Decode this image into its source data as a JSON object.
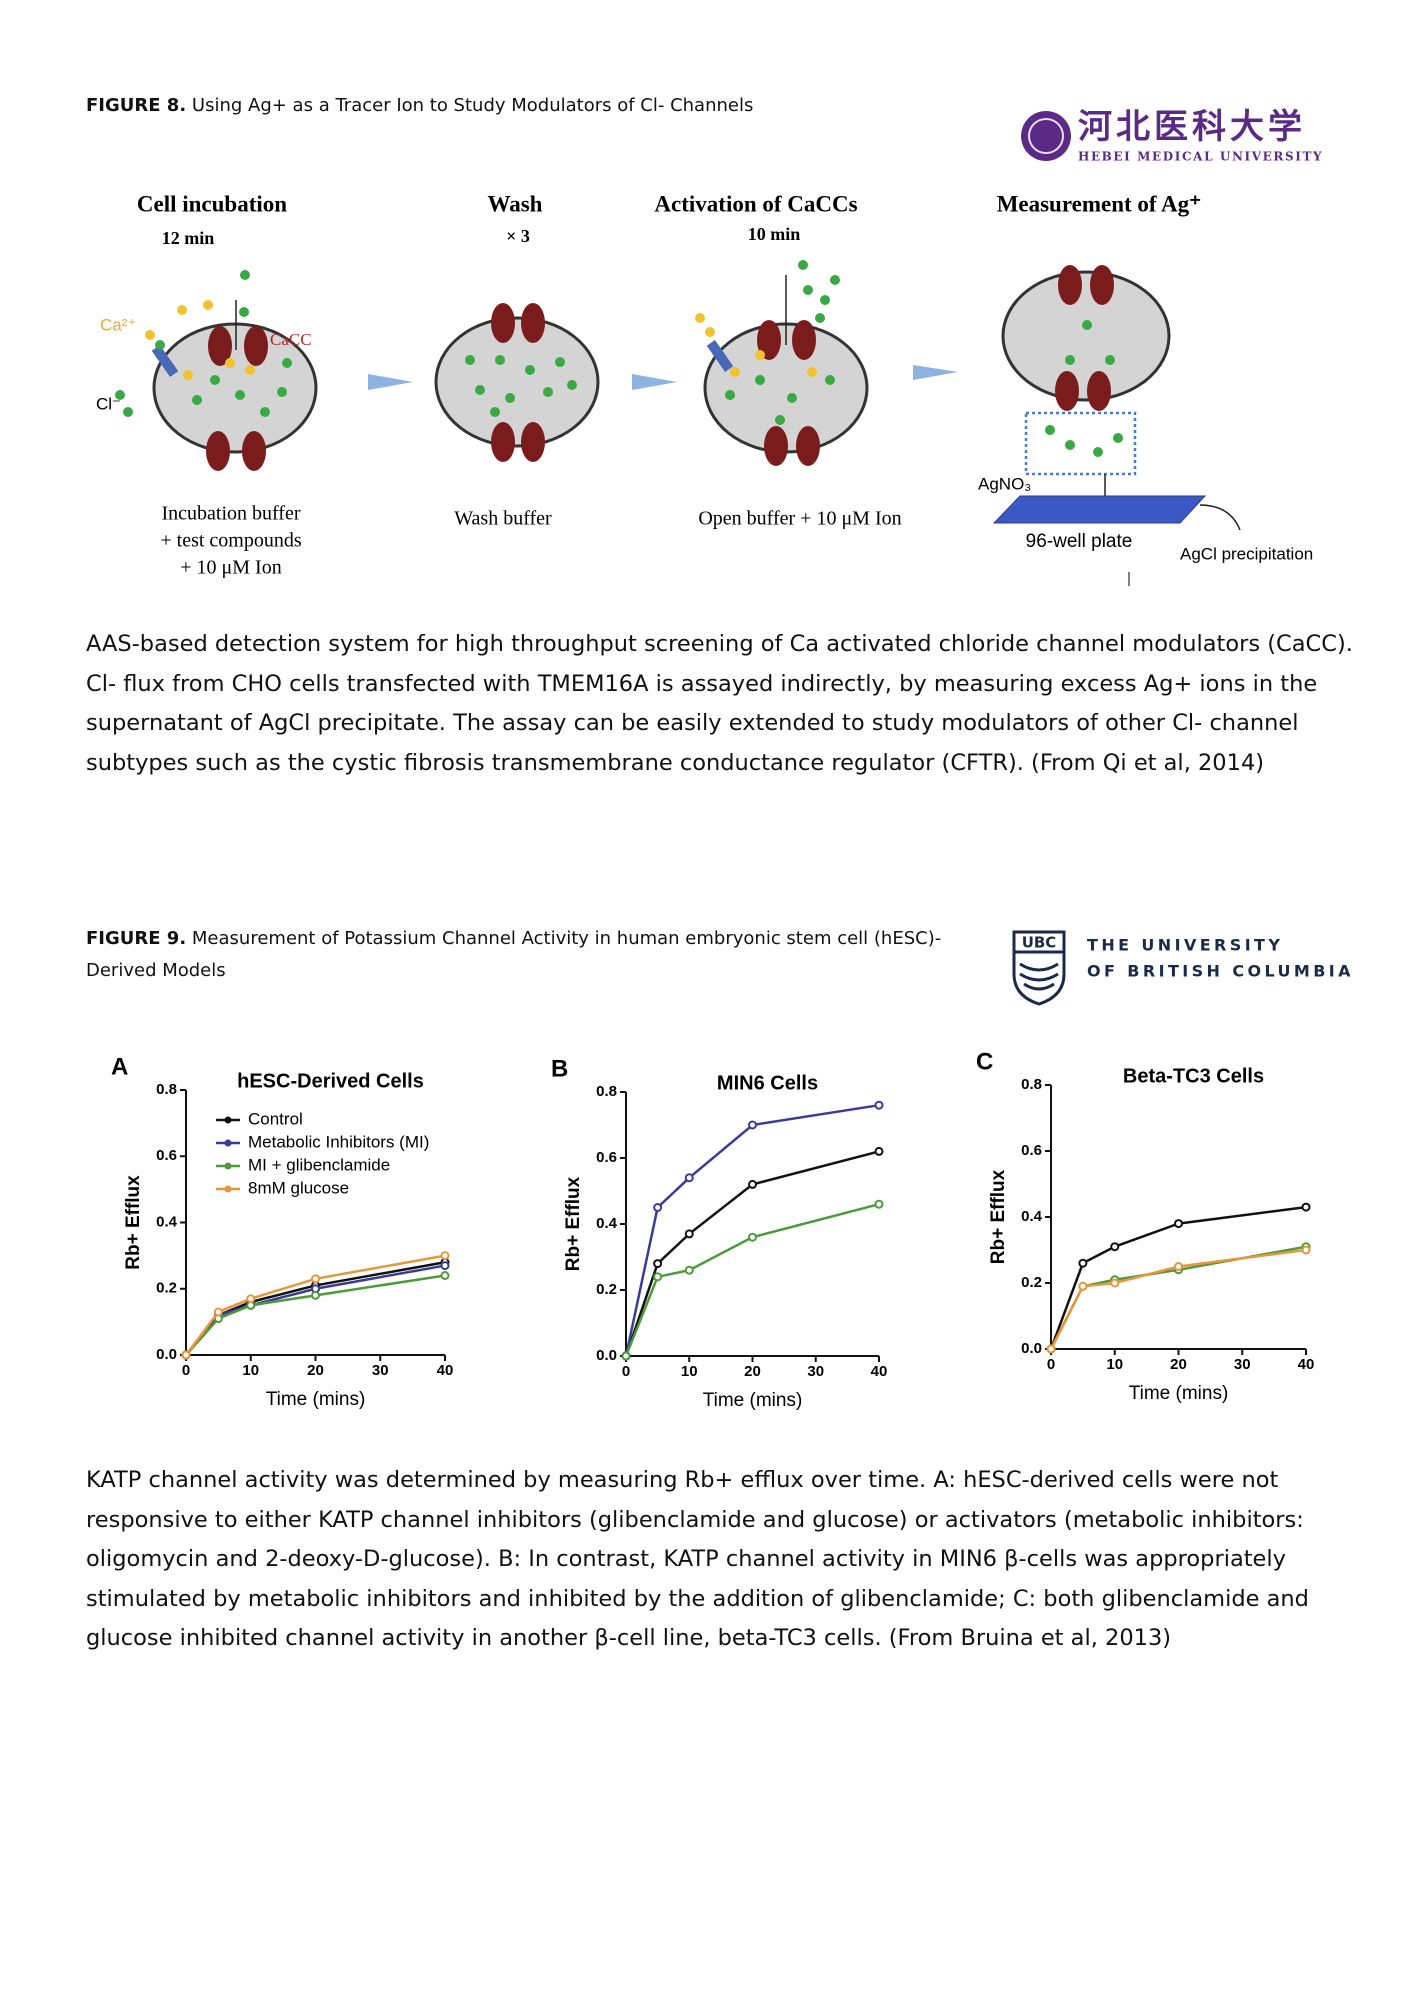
{
  "figure8": {
    "caption_label": "FIGURE 8.",
    "caption": "Using Ag+ as a Tracer Ion to Study Modulators of Cl- Channels",
    "logo": {
      "chinese": "河北医科大学",
      "english": "HEBEI MEDICAL UNIVERSITY"
    },
    "diagram": {
      "steps": [
        {
          "title": "Cell incubation",
          "time": "12 min",
          "buffer": [
            "Incubation buffer",
            "+ test compounds",
            "+ 10 μM Ion"
          ]
        },
        {
          "title": "Wash",
          "time": "× 3",
          "buffer": [
            "Wash buffer"
          ]
        },
        {
          "title": "Activation of CaCCs",
          "time": "10 min",
          "buffer": [
            "Open buffer + 10 μM Ion"
          ]
        },
        {
          "title": "Measurement of Ag⁺"
        }
      ],
      "labels": {
        "ca": "Ca²⁺",
        "cacc": "CaCC",
        "cl": "Cl⁻",
        "agno3": "AgNO₃",
        "plate": "96-well plate",
        "precipitation": "AgCl precipitation"
      }
    },
    "description": "AAS-based detection system for high throughput screening of Ca activated chloride channel modulators (CaCC). Cl- flux from CHO cells transfected with TMEM16A is assayed indirectly, by measuring excess Ag+ ions in the supernatant of AgCl precipitate. The assay can be easily extended to study modulators of other Cl- channel subtypes such as the cystic fibrosis transmembrane conductance regulator (CFTR). (From Qi et al, 2014)"
  },
  "figure9": {
    "caption_label": "FIGURE 9.",
    "caption": "Measurement of Potassium Channel Activity in human embryonic stem cell (hESC)- Derived Models",
    "logo": {
      "mark": "UBC",
      "line1": "THE UNIVERSITY",
      "line2": "OF BRITISH COLUMBIA"
    },
    "description": "KATP channel activity was determined by measuring Rb+ efflux over time. A: hESC-derived cells were not responsive to either KATP channel inhibitors (glibenclamide and glucose) or activators (metabolic inhibitors: oligomycin and 2-deoxy-D-glucose). B: In contrast, KATP channel activity in MIN6 β-cells was appropriately stimulated by metabolic inhibitors and inhibited by the addition of glibenclamide; C: both glibenclamide and glucose inhibited channel activity in another β-cell line, beta-TC3 cells. (From Bruina et al, 2013)"
  },
  "chart_data": [
    {
      "type": "line",
      "label": "A",
      "title": "hESC-Derived Cells",
      "x_label": "Time (mins)",
      "y_label": "Rb+ Efflux",
      "x": [
        0,
        5,
        10,
        20,
        40
      ],
      "xlim": [
        0,
        40
      ],
      "ylim": [
        0,
        0.8
      ],
      "xticks": [
        0,
        10,
        20,
        30,
        40
      ],
      "yticks": [
        {
          "value": 0,
          "label": "0.0"
        },
        0.2,
        0.4,
        0.6,
        0.8
      ],
      "legend": "upper-left",
      "series": [
        {
          "name": "Control",
          "color": "#111111",
          "values": [
            0,
            0.12,
            0.16,
            0.21,
            0.28
          ]
        },
        {
          "name": "Metabolic Inhibitors  (MI)",
          "color": "#3a3a9a",
          "values": [
            0,
            0.12,
            0.15,
            0.2,
            0.27
          ]
        },
        {
          "name": "MI + glibenclamide",
          "color": "#4c9a3c",
          "values": [
            0,
            0.11,
            0.15,
            0.18,
            0.24
          ]
        },
        {
          "name": "8mM glucose",
          "color": "#e8963a",
          "values": [
            0,
            0.13,
            0.17,
            0.23,
            0.3
          ]
        }
      ]
    },
    {
      "type": "line",
      "label": "B",
      "title": "MIN6 Cells",
      "x_label": "Time (mins)",
      "y_label": "Rb+ Efflux",
      "x": [
        0,
        5,
        10,
        20,
        40
      ],
      "xlim": [
        0,
        40
      ],
      "ylim": [
        0,
        0.8
      ],
      "xticks": [
        0,
        10,
        20,
        30,
        40
      ],
      "yticks": [
        {
          "value": 0,
          "label": "0.0"
        },
        0.2,
        0.4,
        0.6,
        0.8
      ],
      "series": [
        {
          "color": "#111111",
          "values": [
            0,
            0.28,
            0.37,
            0.52,
            0.62
          ]
        },
        {
          "color": "#3a3a9a",
          "values": [
            0,
            0.45,
            0.54,
            0.7,
            0.76
          ]
        },
        {
          "color": "#4c9a3c",
          "values": [
            0,
            0.24,
            0.26,
            0.36,
            0.46
          ]
        }
      ]
    },
    {
      "type": "line",
      "label": "C",
      "title": "Beta-TC3 Cells",
      "x_label": "Time (mins)",
      "y_label": "Rb+ Efflux",
      "x": [
        0,
        5,
        10,
        20,
        40
      ],
      "xlim": [
        0,
        40
      ],
      "ylim": [
        0,
        0.8
      ],
      "xticks": [
        0,
        10,
        20,
        30,
        40
      ],
      "yticks": [
        {
          "value": 0,
          "label": "0.0"
        },
        0.2,
        0.4,
        0.6,
        0.8
      ],
      "series": [
        {
          "color": "#111111",
          "values": [
            0,
            0.26,
            0.31,
            0.38,
            0.43
          ]
        },
        {
          "color": "#4c9a3c",
          "values": [
            0,
            0.19,
            0.21,
            0.24,
            0.31
          ]
        },
        {
          "color": "#e8963a",
          "values": [
            0,
            0.19,
            0.2,
            0.25,
            0.3
          ]
        }
      ]
    }
  ]
}
